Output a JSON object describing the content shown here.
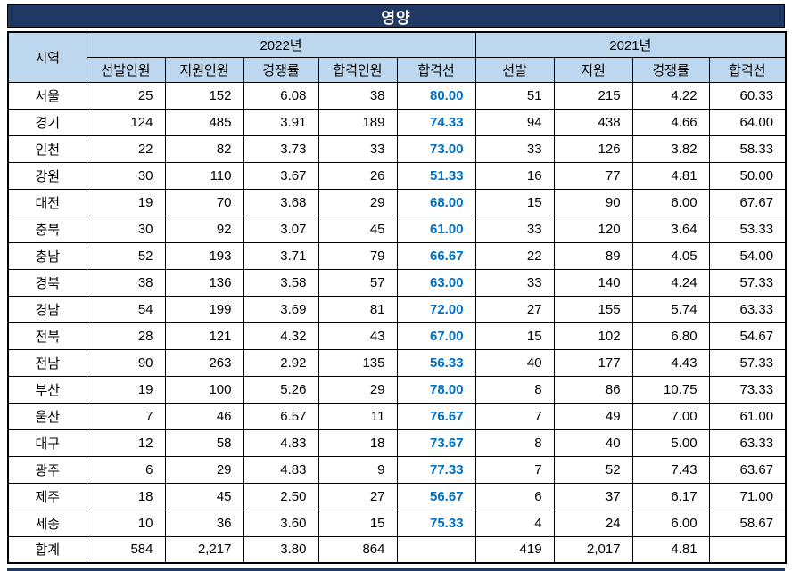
{
  "title": "영양",
  "colors": {
    "navy": "#1F3864",
    "header_blue": "#BDD7EE",
    "cutoff_blue": "#0070C0",
    "border": "#000000"
  },
  "table": {
    "region_header": "지역",
    "groups": [
      {
        "label": "2022년",
        "columns": [
          "선발인원",
          "지원인원",
          "경쟁률",
          "합격인원",
          "합격선"
        ]
      },
      {
        "label": "2021년",
        "columns": [
          "선발",
          "지원",
          "경쟁률",
          "합격선"
        ]
      }
    ],
    "rows": [
      {
        "region": "서울",
        "y2022": [
          "25",
          "152",
          "6.08",
          "38",
          "80.00"
        ],
        "y2021": [
          "51",
          "215",
          "4.22",
          "60.33"
        ]
      },
      {
        "region": "경기",
        "y2022": [
          "124",
          "485",
          "3.91",
          "189",
          "74.33"
        ],
        "y2021": [
          "94",
          "438",
          "4.66",
          "64.00"
        ]
      },
      {
        "region": "인천",
        "y2022": [
          "22",
          "82",
          "3.73",
          "33",
          "73.00"
        ],
        "y2021": [
          "33",
          "126",
          "3.82",
          "58.33"
        ]
      },
      {
        "region": "강원",
        "y2022": [
          "30",
          "110",
          "3.67",
          "26",
          "51.33"
        ],
        "y2021": [
          "16",
          "77",
          "4.81",
          "50.00"
        ]
      },
      {
        "region": "대전",
        "y2022": [
          "19",
          "70",
          "3.68",
          "29",
          "68.00"
        ],
        "y2021": [
          "15",
          "90",
          "6.00",
          "67.67"
        ]
      },
      {
        "region": "충북",
        "y2022": [
          "30",
          "92",
          "3.07",
          "45",
          "61.00"
        ],
        "y2021": [
          "33",
          "120",
          "3.64",
          "53.33"
        ]
      },
      {
        "region": "충남",
        "y2022": [
          "52",
          "193",
          "3.71",
          "79",
          "66.67"
        ],
        "y2021": [
          "22",
          "89",
          "4.05",
          "54.00"
        ]
      },
      {
        "region": "경북",
        "y2022": [
          "38",
          "136",
          "3.58",
          "57",
          "63.00"
        ],
        "y2021": [
          "33",
          "140",
          "4.24",
          "57.33"
        ]
      },
      {
        "region": "경남",
        "y2022": [
          "54",
          "199",
          "3.69",
          "81",
          "72.00"
        ],
        "y2021": [
          "27",
          "155",
          "5.74",
          "63.33"
        ]
      },
      {
        "region": "전북",
        "y2022": [
          "28",
          "121",
          "4.32",
          "43",
          "67.00"
        ],
        "y2021": [
          "15",
          "102",
          "6.80",
          "54.67"
        ]
      },
      {
        "region": "전남",
        "y2022": [
          "90",
          "263",
          "2.92",
          "135",
          "56.33"
        ],
        "y2021": [
          "40",
          "177",
          "4.43",
          "57.33"
        ]
      },
      {
        "region": "부산",
        "y2022": [
          "19",
          "100",
          "5.26",
          "29",
          "78.00"
        ],
        "y2021": [
          "8",
          "86",
          "10.75",
          "73.33"
        ]
      },
      {
        "region": "울산",
        "y2022": [
          "7",
          "46",
          "6.57",
          "11",
          "76.67"
        ],
        "y2021": [
          "7",
          "49",
          "7.00",
          "61.00"
        ]
      },
      {
        "region": "대구",
        "y2022": [
          "12",
          "58",
          "4.83",
          "18",
          "73.67"
        ],
        "y2021": [
          "8",
          "40",
          "5.00",
          "63.33"
        ]
      },
      {
        "region": "광주",
        "y2022": [
          "6",
          "29",
          "4.83",
          "9",
          "77.33"
        ],
        "y2021": [
          "7",
          "52",
          "7.43",
          "63.67"
        ]
      },
      {
        "region": "제주",
        "y2022": [
          "18",
          "45",
          "2.50",
          "27",
          "56.67"
        ],
        "y2021": [
          "6",
          "37",
          "6.17",
          "71.00"
        ]
      },
      {
        "region": "세종",
        "y2022": [
          "10",
          "36",
          "3.60",
          "15",
          "75.33"
        ],
        "y2021": [
          "4",
          "24",
          "6.00",
          "58.67"
        ]
      },
      {
        "region": "합계",
        "y2022": [
          "584",
          "2,217",
          "3.80",
          "864",
          ""
        ],
        "y2021": [
          "419",
          "2,017",
          "4.81",
          ""
        ]
      }
    ]
  }
}
